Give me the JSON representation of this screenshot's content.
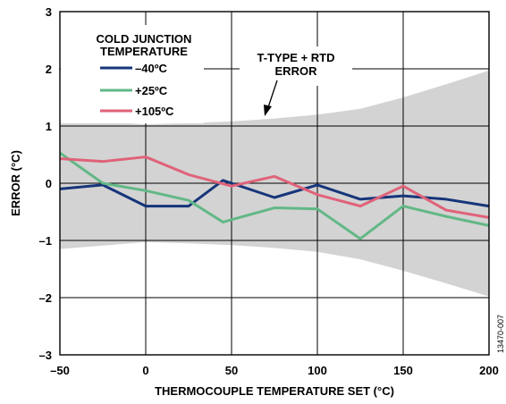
{
  "chart_data": {
    "type": "line",
    "xlabel": "THERMOCOUPLE TEMPERATURE SET (°C)",
    "ylabel": "ERROR (°C)",
    "xlim": [
      -50,
      200
    ],
    "ylim": [
      -3,
      3
    ],
    "x_ticks": [
      "–50",
      "0",
      "50",
      "100",
      "150",
      "200"
    ],
    "y_ticks": [
      "3",
      "2",
      "1",
      "0",
      "–1",
      "–2",
      "–3"
    ],
    "grid": true,
    "legend": {
      "title_line1": "COLD JUNCTION",
      "title_line2": "TEMPERATURE",
      "placement": "top-left"
    },
    "annotation": {
      "line1": "T-TYPE + RTD",
      "line2": "ERROR"
    },
    "figure_code": "13470-007",
    "error_band": {
      "x": [
        -50,
        0,
        25,
        50,
        75,
        100,
        125,
        150,
        175,
        200
      ],
      "upper": [
        1.12,
        1.03,
        1.05,
        1.08,
        1.13,
        1.2,
        1.3,
        1.5,
        1.73,
        1.97
      ],
      "lower": [
        -1.15,
        -1.03,
        -1.05,
        -1.08,
        -1.13,
        -1.2,
        -1.33,
        -1.53,
        -1.75,
        -1.98
      ]
    },
    "series": [
      {
        "name": "–40ºC",
        "color": "#16357a",
        "x": [
          -50,
          -25,
          0,
          25,
          45,
          75,
          100,
          125,
          150,
          175,
          200
        ],
        "y": [
          -0.1,
          -0.03,
          -0.4,
          -0.4,
          0.05,
          -0.25,
          -0.03,
          -0.28,
          -0.22,
          -0.28,
          -0.4
        ]
      },
      {
        "name": "+25ºC",
        "color": "#62b886",
        "x": [
          -50,
          -25,
          0,
          25,
          45,
          75,
          100,
          125,
          150,
          175,
          200
        ],
        "y": [
          0.53,
          0.0,
          -0.13,
          -0.3,
          -0.68,
          -0.43,
          -0.45,
          -0.97,
          -0.4,
          -0.58,
          -0.74
        ]
      },
      {
        "name": "+105ºC",
        "color": "#e06279",
        "x": [
          -50,
          -25,
          0,
          25,
          50,
          75,
          100,
          125,
          150,
          175,
          200
        ],
        "y": [
          0.43,
          0.38,
          0.46,
          0.15,
          -0.05,
          0.12,
          -0.2,
          -0.4,
          -0.05,
          -0.47,
          -0.6
        ]
      }
    ]
  }
}
